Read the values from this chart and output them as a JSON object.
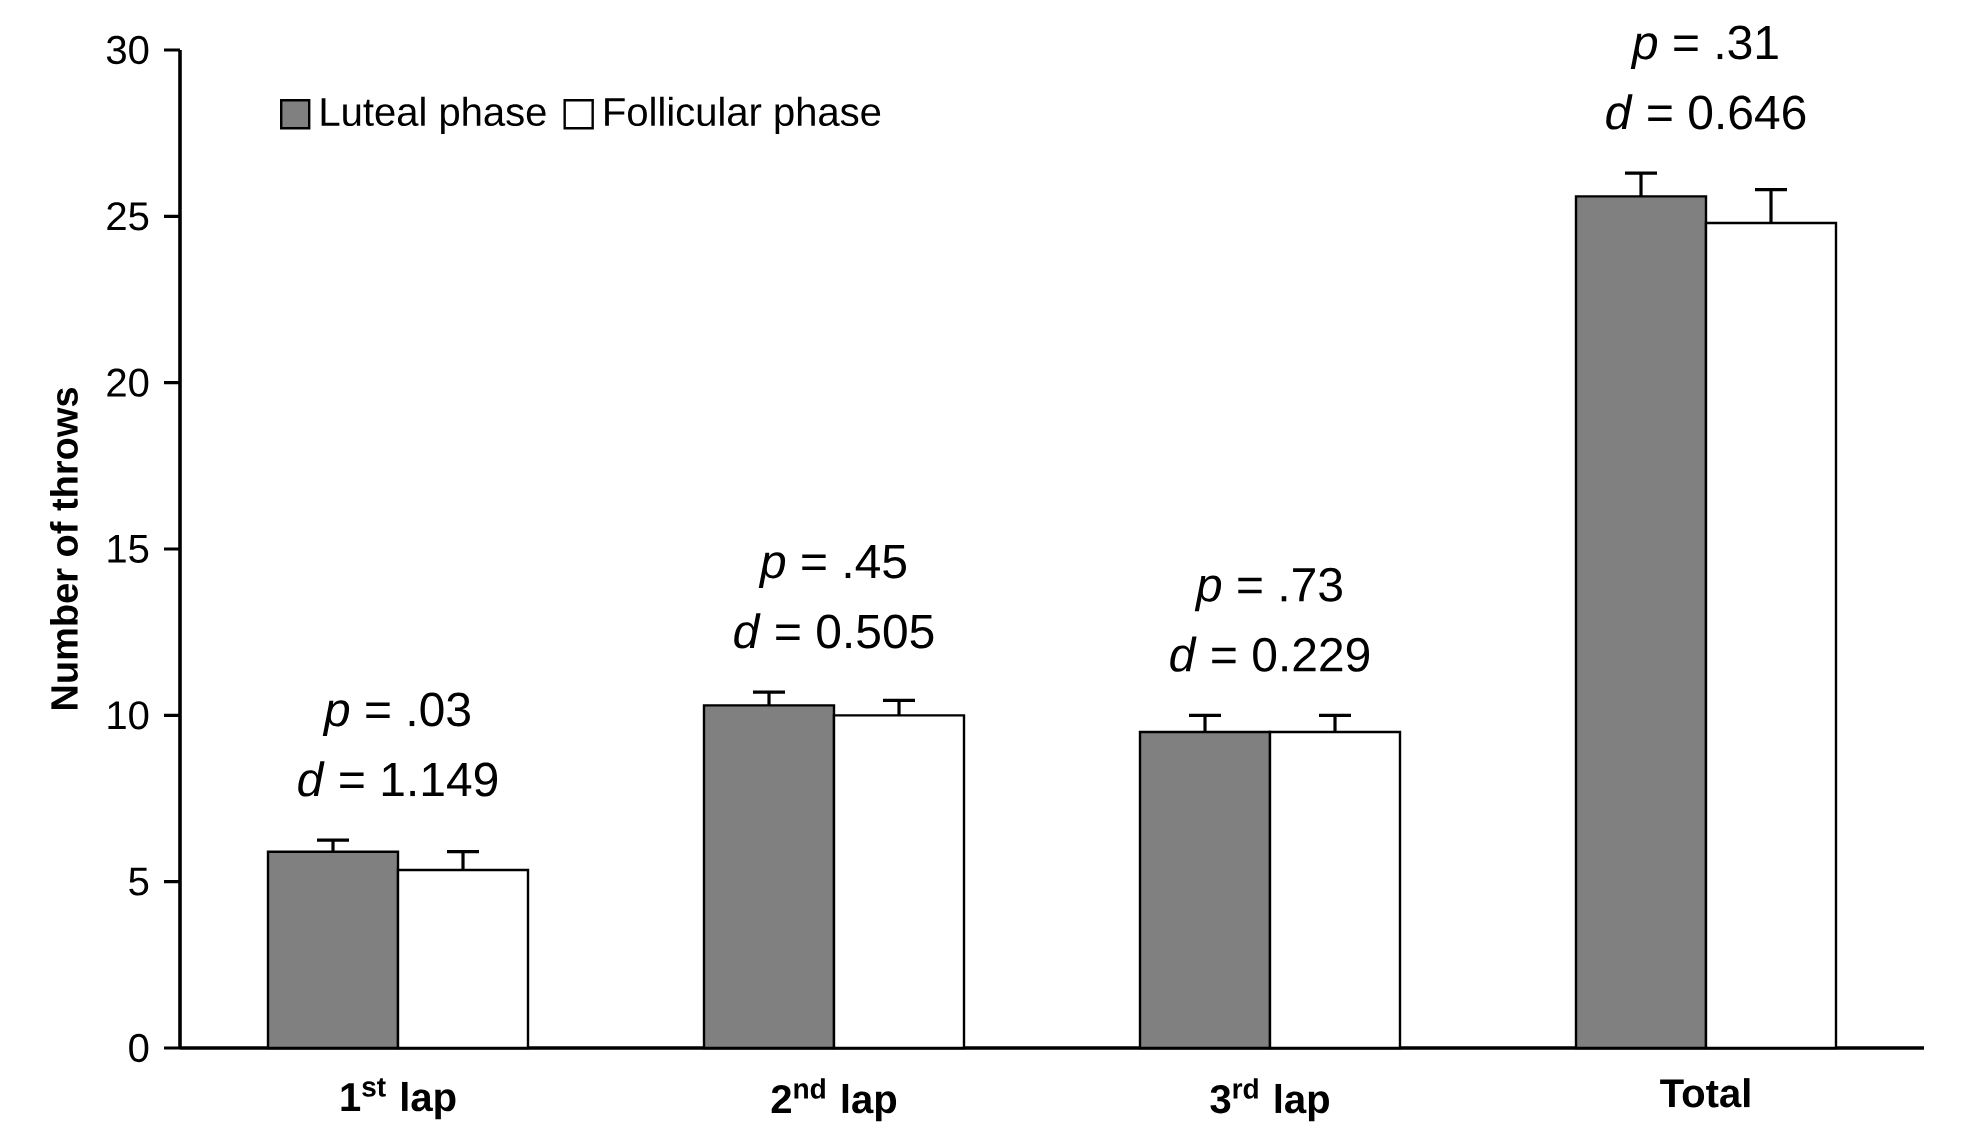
{
  "chart_data": {
    "type": "bar",
    "ylabel": "Number of throws",
    "categories": [
      "1$^{st}$ lap",
      "2$^{nd}$ lap",
      "3$^{rd}$ lap",
      "Total"
    ],
    "series": [
      {
        "name": "Luteal phase",
        "color": "#808080",
        "values": [
          5.9,
          10.3,
          9.5,
          25.6
        ],
        "errors": [
          0.35,
          0.4,
          0.5,
          0.7
        ]
      },
      {
        "name": "Follicular phase",
        "color": "#ffffff",
        "values": [
          5.35,
          10.0,
          9.5,
          24.8
        ],
        "errors": [
          0.55,
          0.45,
          0.5,
          1.0
        ]
      }
    ],
    "ylim": [
      0,
      30
    ],
    "yticks": [
      0,
      5,
      10,
      15,
      20,
      25,
      30
    ],
    "legend": "top left",
    "grid": false,
    "annotations": [
      "*p* = .03",
      "*d* = 1.149",
      "*p* = .45",
      "*d* = 0.505",
      "*p* = .73",
      "*d* = 0.229",
      "*p* = .31",
      "*d* = 0.646"
    ]
  }
}
